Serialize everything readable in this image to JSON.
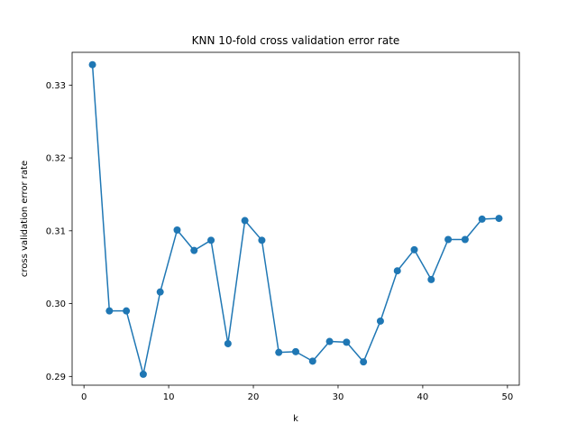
{
  "chart_data": {
    "type": "line",
    "title": "KNN 10-fold cross validation error rate",
    "xlabel": "k",
    "ylabel": "cross validation error rate",
    "xlim": [
      -1.4,
      51.4
    ],
    "ylim": [
      0.2888,
      0.3345
    ],
    "xticks": [
      0,
      10,
      20,
      30,
      40,
      50
    ],
    "yticks": [
      0.29,
      0.3,
      0.31,
      0.32,
      0.33
    ],
    "xtick_labels": [
      "0",
      "10",
      "20",
      "30",
      "40",
      "50"
    ],
    "ytick_labels": [
      "0.29",
      "0.30",
      "0.31",
      "0.32",
      "0.33"
    ],
    "grid": false,
    "series": [
      {
        "color": "#1f77b4",
        "marker": "circle",
        "x": [
          1,
          3,
          5,
          7,
          9,
          11,
          13,
          15,
          17,
          19,
          21,
          23,
          25,
          27,
          29,
          31,
          33,
          35,
          37,
          39,
          41,
          43,
          45,
          47,
          49
        ],
        "y": [
          0.3328,
          0.299,
          0.299,
          0.2903,
          0.3016,
          0.3101,
          0.3073,
          0.3087,
          0.2945,
          0.3114,
          0.3087,
          0.2933,
          0.2934,
          0.2921,
          0.2948,
          0.2947,
          0.292,
          0.2976,
          0.3045,
          0.3074,
          0.3033,
          0.3088,
          0.3088,
          0.3116,
          0.3117
        ]
      }
    ]
  }
}
